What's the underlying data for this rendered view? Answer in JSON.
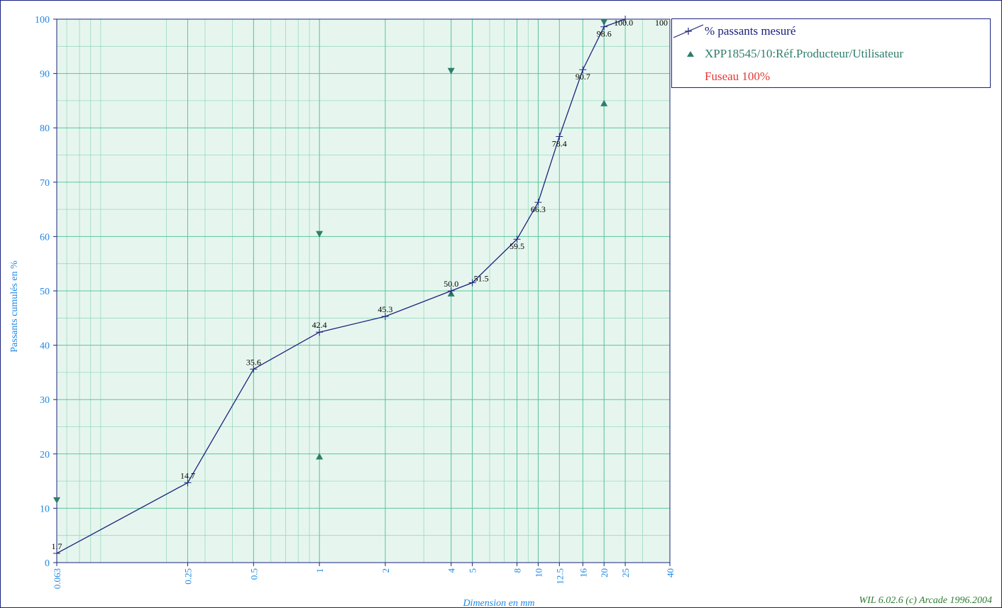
{
  "chart_data": {
    "type": "line",
    "xlabel": "Dimension en mm",
    "ylabel": "Passants cumulés en %",
    "x_scale": "log",
    "xlim": [
      0.063,
      40
    ],
    "ylim": [
      0,
      100
    ],
    "grid": true,
    "legend_position": "top-right",
    "x_ticks": [
      {
        "value": 0.063,
        "label": "0.063"
      },
      {
        "value": 0.25,
        "label": "0.25"
      },
      {
        "value": 0.5,
        "label": "0.5"
      },
      {
        "value": 1,
        "label": "1"
      },
      {
        "value": 2,
        "label": "2"
      },
      {
        "value": 4,
        "label": "4"
      },
      {
        "value": 5,
        "label": "5"
      },
      {
        "value": 8,
        "label": "8"
      },
      {
        "value": 10,
        "label": "10"
      },
      {
        "value": 12.5,
        "label": "12.5"
      },
      {
        "value": 16,
        "label": "16"
      },
      {
        "value": 20,
        "label": "20"
      },
      {
        "value": 25,
        "label": "25"
      },
      {
        "value": 40,
        "label": "40"
      }
    ],
    "y_ticks": [
      0,
      10,
      20,
      30,
      40,
      50,
      60,
      70,
      80,
      90,
      100
    ],
    "series": [
      {
        "name": "% passants mesuré",
        "color": "#1a237e",
        "points": [
          {
            "x": 0.063,
            "y": 1.7,
            "label": "1.7"
          },
          {
            "x": 0.25,
            "y": 14.7,
            "label": "14.7"
          },
          {
            "x": 0.5,
            "y": 35.6,
            "label": "35.6"
          },
          {
            "x": 1,
            "y": 42.4,
            "label": "42.4"
          },
          {
            "x": 2,
            "y": 45.3,
            "label": "45.3"
          },
          {
            "x": 4,
            "y": 50.0,
            "label": "50.0"
          },
          {
            "x": 5,
            "y": 51.5,
            "label": "51.5"
          },
          {
            "x": 8,
            "y": 59.5,
            "label": "59.5"
          },
          {
            "x": 10,
            "y": 66.3,
            "label": "66.3"
          },
          {
            "x": 12.5,
            "y": 78.4,
            "label": "78.4"
          },
          {
            "x": 16,
            "y": 90.7,
            "label": "90.7"
          },
          {
            "x": 20,
            "y": 98.6,
            "label": "98.6"
          },
          {
            "x": 25,
            "y": 100.0,
            "label": "100.0"
          },
          {
            "x": 40,
            "y": 100,
            "label": "100"
          }
        ]
      },
      {
        "name": "XPP18545/10:Réf.Producteur/Utilisateur",
        "color": "#2e7d6b",
        "lower_points": [
          {
            "x": 1,
            "y": 19.5
          },
          {
            "x": 4,
            "y": 49.5
          },
          {
            "x": 20,
            "y": 84.5
          }
        ],
        "upper_points": [
          {
            "x": 0.063,
            "y": 11.5
          },
          {
            "x": 1,
            "y": 60.5
          },
          {
            "x": 4,
            "y": 90.5
          },
          {
            "x": 20,
            "y": 99.5
          }
        ]
      }
    ],
    "extra_legend": {
      "name": "Fuseau 100%",
      "color": "#e53935"
    },
    "credit": "WIL 6.02.6 (c) Arcade 1996.2004"
  }
}
